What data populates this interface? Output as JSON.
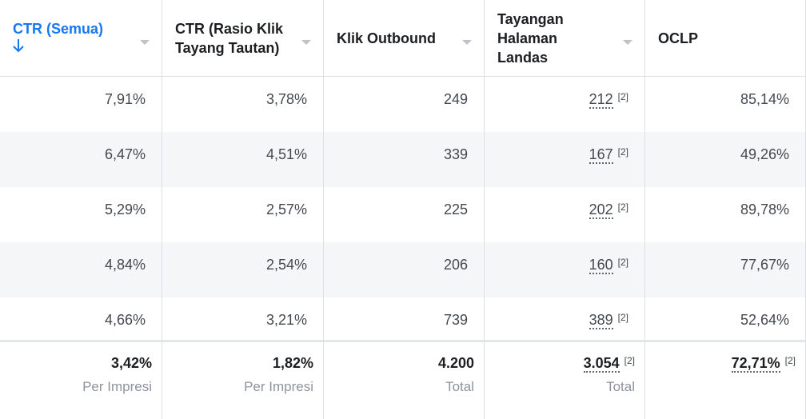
{
  "table": {
    "headers": [
      "CTR (Semua)",
      "CTR (Rasio Klik Tayang Tautan)",
      "Klik Outbound",
      "Tayangan Halaman Landas",
      "OCLP"
    ],
    "rows": [
      [
        "7,91%",
        "3,78%",
        "249",
        {
          "text": "212",
          "note": "[2]"
        },
        "85,14%"
      ],
      [
        "6,47%",
        "4,51%",
        "339",
        {
          "text": "167",
          "note": "[2]"
        },
        "49,26%"
      ],
      [
        "5,29%",
        "2,57%",
        "225",
        {
          "text": "202",
          "note": "[2]"
        },
        "89,78%"
      ],
      [
        "4,84%",
        "2,54%",
        "206",
        {
          "text": "160",
          "note": "[2]"
        },
        "77,67%"
      ],
      [
        "4,66%",
        "3,21%",
        "739",
        {
          "text": "389",
          "note": "[2]"
        },
        "52,64%"
      ]
    ],
    "totals": [
      {
        "text": "3,42%",
        "label": "Per Impresi"
      },
      {
        "text": "1,82%",
        "label": "Per Impresi"
      },
      {
        "text": "4.200",
        "label": "Total"
      },
      {
        "text": "3.054",
        "note": "[2]",
        "label": "Total"
      },
      {
        "text": "72,71%",
        "note": "[2]"
      }
    ]
  }
}
